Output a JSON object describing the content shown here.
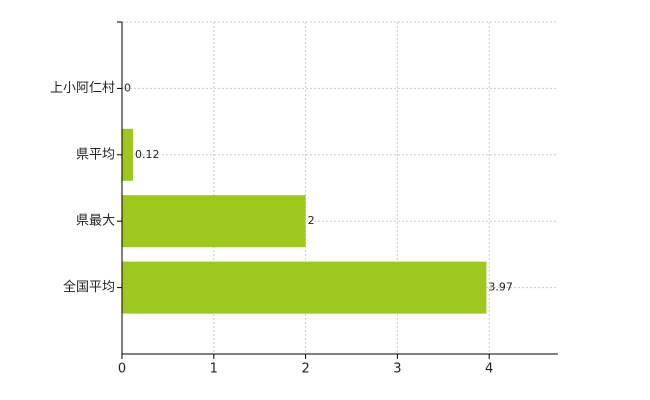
{
  "chart_data": {
    "type": "hbar",
    "categories": [
      "上小阿仁村",
      "県平均",
      "県最大",
      "全国平均"
    ],
    "values": [
      0,
      0.12,
      2,
      3.97
    ],
    "color": "#9dc81e",
    "xlim": [
      0,
      4.75
    ],
    "xticks": [
      0,
      1,
      2,
      3,
      4
    ],
    "grid": true
  }
}
